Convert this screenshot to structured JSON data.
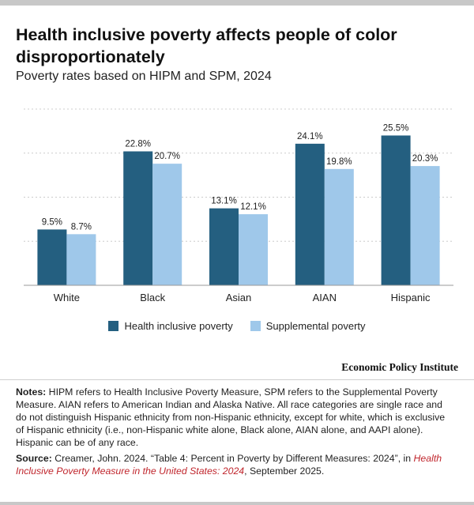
{
  "title": "Health inclusive poverty affects people of color disproportionately",
  "subtitle": "Poverty rates based on HIPM and SPM, 2024",
  "chart_data": {
    "type": "bar",
    "categories": [
      "White",
      "Black",
      "Asian",
      "AIAN",
      "Hispanic"
    ],
    "series": [
      {
        "name": "Health inclusive poverty",
        "values": [
          9.5,
          22.8,
          13.1,
          24.1,
          25.5
        ],
        "labels": [
          "9.5%",
          "22.8%",
          "13.1%",
          "24.1%",
          "25.5%"
        ]
      },
      {
        "name": "Supplemental poverty",
        "values": [
          8.7,
          20.7,
          12.1,
          19.8,
          20.3
        ],
        "labels": [
          "8.7%",
          "20.7%",
          "12.1%",
          "19.8%",
          "20.3%"
        ]
      }
    ],
    "ylim": [
      0,
      30
    ],
    "grid": true,
    "legend": "bottom"
  },
  "colors": {
    "hipm": "#245f80",
    "spm": "#9fc8ea",
    "grid": "#cccccc",
    "link": "#c0262d"
  },
  "brand": "Economic Policy Institute",
  "notes": {
    "label": "Notes:",
    "text": " HIPM refers to Health Inclusive Poverty Measure, SPM refers to the Supplemental Poverty Measure. AIAN refers to American Indian and Alaska Native. All race categories are single race and do not distinguish Hispanic ethnicity from non-Hispanic ethnicity, except for white, which is exclusive of Hispanic ethnicity (i.e., non-Hispanic white alone, Black alone, AIAN alone, and AAPI alone). Hispanic can be of any race."
  },
  "source": {
    "label": "Source:",
    "text1": " Creamer, John. 2024. “Table 4: Percent in Poverty by Different Measures: 2024”, in ",
    "link": "Health Inclusive Poverty Measure in the United States: 2024",
    "text2": ", September 2025."
  }
}
